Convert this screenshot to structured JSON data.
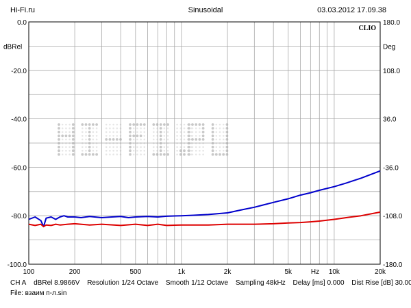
{
  "header": {
    "left": "Hi-Fi.ru",
    "center": "Sinusoidal",
    "right": "03.03.2012 17.09.38"
  },
  "footer": {
    "channel": "CH A",
    "unit_info": "dBRel 8.9866V",
    "resolution": "Resolution 1/24 Octave",
    "smooth": "Smooth 1/12 Octave",
    "sampling": "Sampling 48kHz",
    "delay": "Delay [ms] 0.000",
    "dist_rise": "Dist Rise [dB] 30.00",
    "file": "File: взаим п-л.sin"
  },
  "chart_data": {
    "type": "line",
    "brand": "CLIO",
    "watermark": "Hi-Fi.ru",
    "x_scale": "log",
    "xlim": [
      100,
      20000
    ],
    "xticks": [
      {
        "value": 100,
        "label": "100"
      },
      {
        "value": 200,
        "label": "200"
      },
      {
        "value": 500,
        "label": "500"
      },
      {
        "value": 1000,
        "label": "1k"
      },
      {
        "value": 2000,
        "label": "2k"
      },
      {
        "value": 5000,
        "label": "5k"
      },
      {
        "value": 7500,
        "label": "Hz"
      },
      {
        "value": 10000,
        "label": "10k"
      },
      {
        "value": 20000,
        "label": "20k"
      }
    ],
    "ylim": [
      -100,
      0
    ],
    "yticks": [
      {
        "value": 0,
        "label": "0.0"
      },
      {
        "value": -20,
        "label": "-20.0"
      },
      {
        "value": -40,
        "label": "-40.0"
      },
      {
        "value": -60,
        "label": "-60.0"
      },
      {
        "value": -80,
        "label": "-80.0"
      },
      {
        "value": -100,
        "label": "-100.0"
      }
    ],
    "ylabel": "dBRel",
    "y2lim": [
      -180,
      180
    ],
    "y2ticks": [
      {
        "value": 180,
        "label": "180.0"
      },
      {
        "value": 108,
        "label": "108.0"
      },
      {
        "value": 36,
        "label": "36.0"
      },
      {
        "value": -36,
        "label": "-36.0"
      },
      {
        "value": -108,
        "label": "-108.0"
      },
      {
        "value": -180,
        "label": "-180.0"
      }
    ],
    "y2label": "Deg",
    "grid": true,
    "series": [
      {
        "color": "#0000cc",
        "x": [
          100,
          110,
          120,
          125,
          130,
          140,
          150,
          160,
          170,
          180,
          200,
          220,
          250,
          300,
          350,
          400,
          450,
          500,
          600,
          700,
          800,
          1000,
          1200,
          1500,
          2000,
          2500,
          3000,
          4000,
          5000,
          6000,
          7000,
          8000,
          10000,
          12000,
          15000,
          20000
        ],
        "y": [
          -81.5,
          -80.5,
          -82,
          -84.5,
          -81,
          -80.5,
          -81.5,
          -80.5,
          -80,
          -80.5,
          -80.5,
          -80.8,
          -80.3,
          -80.8,
          -80.5,
          -80.3,
          -80.8,
          -80.5,
          -80.3,
          -80.5,
          -80.2,
          -80,
          -79.8,
          -79.5,
          -78.8,
          -77.5,
          -76.5,
          -74.5,
          -73,
          -71.5,
          -70.5,
          -69.5,
          -68,
          -66.5,
          -64.5,
          -61.5
        ]
      },
      {
        "color": "#dd0000",
        "x": [
          100,
          110,
          120,
          125,
          130,
          140,
          150,
          160,
          180,
          200,
          250,
          300,
          400,
          500,
          600,
          700,
          800,
          1000,
          1500,
          2000,
          3000,
          4000,
          5000,
          6000,
          7000,
          8000,
          10000,
          12000,
          15000,
          20000
        ],
        "y": [
          -83.5,
          -84,
          -83.5,
          -84.5,
          -83.8,
          -84,
          -83.5,
          -83.8,
          -83.5,
          -83.3,
          -83.8,
          -83.5,
          -84,
          -83.5,
          -84,
          -83.5,
          -84,
          -83.8,
          -83.8,
          -83.5,
          -83.5,
          -83.3,
          -83,
          -82.8,
          -82.5,
          -82.2,
          -81.5,
          -80.8,
          -80,
          -78.5
        ]
      }
    ]
  }
}
